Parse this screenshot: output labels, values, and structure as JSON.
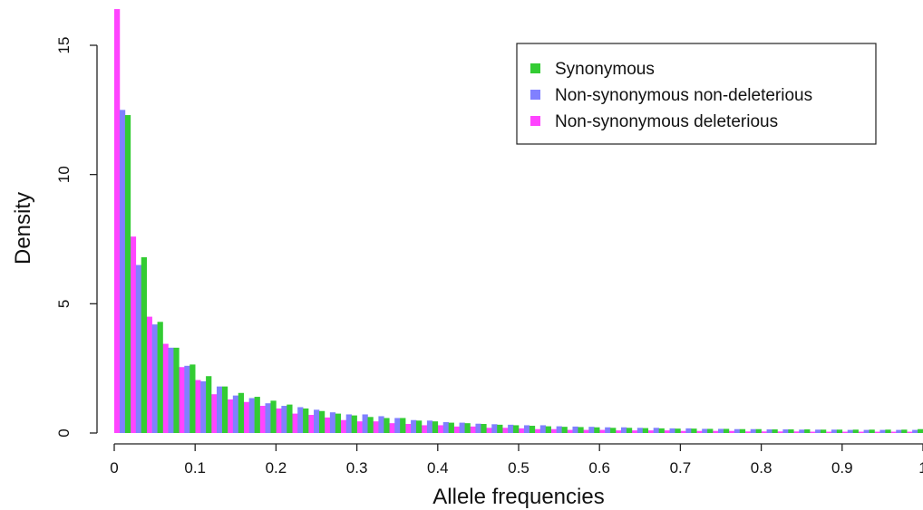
{
  "chart_data": {
    "type": "bar",
    "xlabel": "Allele frequencies",
    "ylabel": "Density",
    "xlim": [
      0,
      1
    ],
    "ylim": [
      0,
      16.5
    ],
    "bin_width": 0.02,
    "x_ticks": [
      0,
      0.1,
      0.2,
      0.3,
      0.4,
      0.5,
      0.6,
      0.7,
      0.8,
      0.9,
      1
    ],
    "x_tick_labels": [
      "0",
      "0.1",
      "0.2",
      "0.3",
      "0.4",
      "0.5",
      "0.6",
      "0.7",
      "0.8",
      "0.9",
      "1"
    ],
    "y_ticks": [
      0,
      5,
      10,
      15
    ],
    "y_tick_labels": [
      "0",
      "5",
      "10",
      "15"
    ],
    "legend_position": "top-right",
    "x": [
      0.01,
      0.03,
      0.05,
      0.07,
      0.09,
      0.11,
      0.13,
      0.15,
      0.17,
      0.19,
      0.21,
      0.23,
      0.25,
      0.27,
      0.29,
      0.31,
      0.33,
      0.35,
      0.37,
      0.39,
      0.41,
      0.43,
      0.45,
      0.47,
      0.49,
      0.51,
      0.53,
      0.55,
      0.57,
      0.59,
      0.61,
      0.63,
      0.65,
      0.67,
      0.69,
      0.71,
      0.73,
      0.75,
      0.77,
      0.79,
      0.81,
      0.83,
      0.85,
      0.87,
      0.89,
      0.91,
      0.93,
      0.95,
      0.97,
      0.99
    ],
    "series": [
      {
        "name": "Non-synonymous deleterious",
        "color": "#ff44ff",
        "values": [
          16.4,
          7.6,
          4.5,
          3.45,
          2.55,
          2.05,
          1.5,
          1.3,
          1.2,
          1.05,
          0.95,
          0.75,
          0.7,
          0.6,
          0.5,
          0.45,
          0.45,
          0.38,
          0.35,
          0.3,
          0.3,
          0.25,
          0.25,
          0.2,
          0.2,
          0.18,
          0.15,
          0.15,
          0.12,
          0.12,
          0.12,
          0.1,
          0.1,
          0.1,
          0.1,
          0.08,
          0.08,
          0.08,
          0.08,
          0.06,
          0.06,
          0.06,
          0.06,
          0.05,
          0.05,
          0.05,
          0.05,
          0.05,
          0.05,
          0.05
        ]
      },
      {
        "name": "Non-synonymous non-deleterious",
        "color": "#8080ff",
        "values": [
          12.5,
          6.5,
          4.2,
          3.3,
          2.6,
          2.0,
          1.8,
          1.45,
          1.35,
          1.15,
          1.05,
          1.0,
          0.9,
          0.8,
          0.72,
          0.72,
          0.65,
          0.58,
          0.5,
          0.48,
          0.42,
          0.4,
          0.36,
          0.34,
          0.32,
          0.3,
          0.3,
          0.26,
          0.25,
          0.24,
          0.22,
          0.22,
          0.2,
          0.2,
          0.18,
          0.18,
          0.16,
          0.16,
          0.15,
          0.15,
          0.14,
          0.14,
          0.13,
          0.13,
          0.13,
          0.12,
          0.12,
          0.12,
          0.12,
          0.12
        ]
      },
      {
        "name": "Synonymous",
        "color": "#33cc33",
        "values": [
          12.3,
          6.8,
          4.3,
          3.3,
          2.65,
          2.2,
          1.8,
          1.55,
          1.4,
          1.25,
          1.1,
          0.95,
          0.85,
          0.75,
          0.68,
          0.62,
          0.58,
          0.58,
          0.48,
          0.45,
          0.4,
          0.38,
          0.35,
          0.32,
          0.3,
          0.28,
          0.26,
          0.24,
          0.23,
          0.22,
          0.2,
          0.2,
          0.19,
          0.18,
          0.17,
          0.17,
          0.16,
          0.16,
          0.15,
          0.15,
          0.14,
          0.14,
          0.14,
          0.13,
          0.13,
          0.13,
          0.13,
          0.13,
          0.13,
          0.15
        ]
      }
    ],
    "legend": [
      {
        "label": "Synonymous",
        "color": "#33cc33"
      },
      {
        "label": "Non-synonymous non-deleterious",
        "color": "#8080ff"
      },
      {
        "label": "Non-synonymous deleterious",
        "color": "#ff44ff"
      }
    ]
  }
}
